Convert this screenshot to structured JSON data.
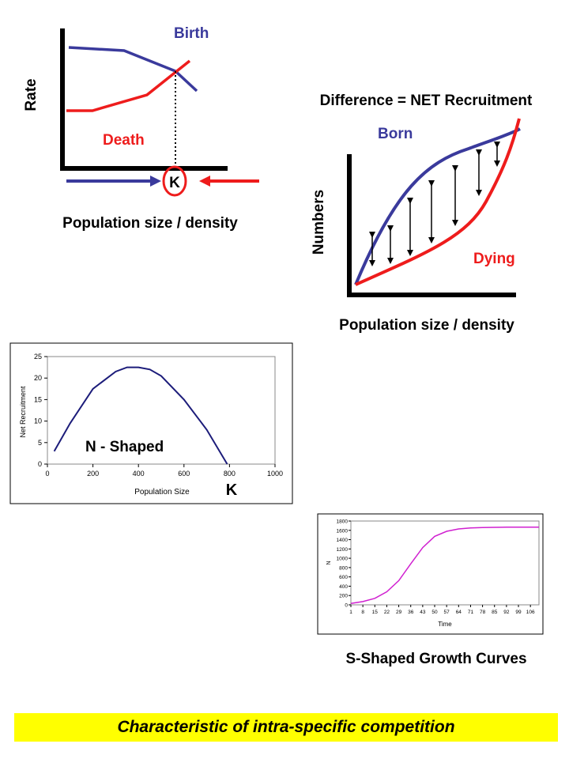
{
  "colors": {
    "birth": "#3a3a9c",
    "death": "#ee1c1c",
    "curve_n": "#1c1c7a",
    "curve_s": "#d020d0",
    "footer_bg": "#ffff00"
  },
  "rate_panel": {
    "y_label": "Rate",
    "birth_label": "Birth",
    "death_label": "Death",
    "k_label": "K",
    "x_label": "Population size / density"
  },
  "recruit_panel": {
    "title": "Difference = NET Recruitment",
    "born_label": "Born",
    "dying_label": "Dying",
    "y_label": "Numbers",
    "x_label": "Population size / density"
  },
  "n_chart": {
    "overlay_label": "N - Shaped",
    "k_label": "K"
  },
  "s_chart": {
    "caption": "S-Shaped Growth Curves"
  },
  "chart_data": [
    {
      "type": "line",
      "title": "",
      "xlabel": "Population Size",
      "ylabel": "Net Recruitment",
      "xlim": [
        0,
        1000
      ],
      "ylim": [
        0,
        25
      ],
      "x_ticks": [
        "0",
        "200",
        "400",
        "600",
        "800",
        "1000"
      ],
      "y_ticks": [
        "0",
        "5",
        "10",
        "15",
        "20",
        "25"
      ],
      "series": [
        {
          "x": [
            30,
            100,
            200,
            300,
            350,
            400,
            450,
            500,
            600,
            700,
            790
          ],
          "values": [
            3,
            9.5,
            17.5,
            21.5,
            22.5,
            22.5,
            22,
            20.5,
            15,
            8,
            0
          ]
        }
      ],
      "grid": false
    },
    {
      "type": "line",
      "title": "",
      "xlabel": "Time",
      "ylabel": "N",
      "ylim": [
        0,
        1800
      ],
      "x_ticks": [
        "1",
        "8",
        "15",
        "22",
        "29",
        "36",
        "43",
        "50",
        "57",
        "64",
        "71",
        "78",
        "85",
        "92",
        "99",
        "106"
      ],
      "y_ticks": [
        "0",
        "200",
        "400",
        "600",
        "800",
        "1000",
        "1200",
        "1400",
        "1600",
        "1800"
      ],
      "series": [
        {
          "x": [
            1,
            8,
            15,
            22,
            29,
            36,
            43,
            50,
            57,
            64,
            71,
            78,
            85,
            92,
            99,
            106,
            111
          ],
          "values": [
            30,
            70,
            140,
            280,
            520,
            880,
            1230,
            1470,
            1580,
            1630,
            1650,
            1660,
            1665,
            1668,
            1670,
            1670,
            1670
          ]
        }
      ],
      "grid": false
    }
  ]
}
